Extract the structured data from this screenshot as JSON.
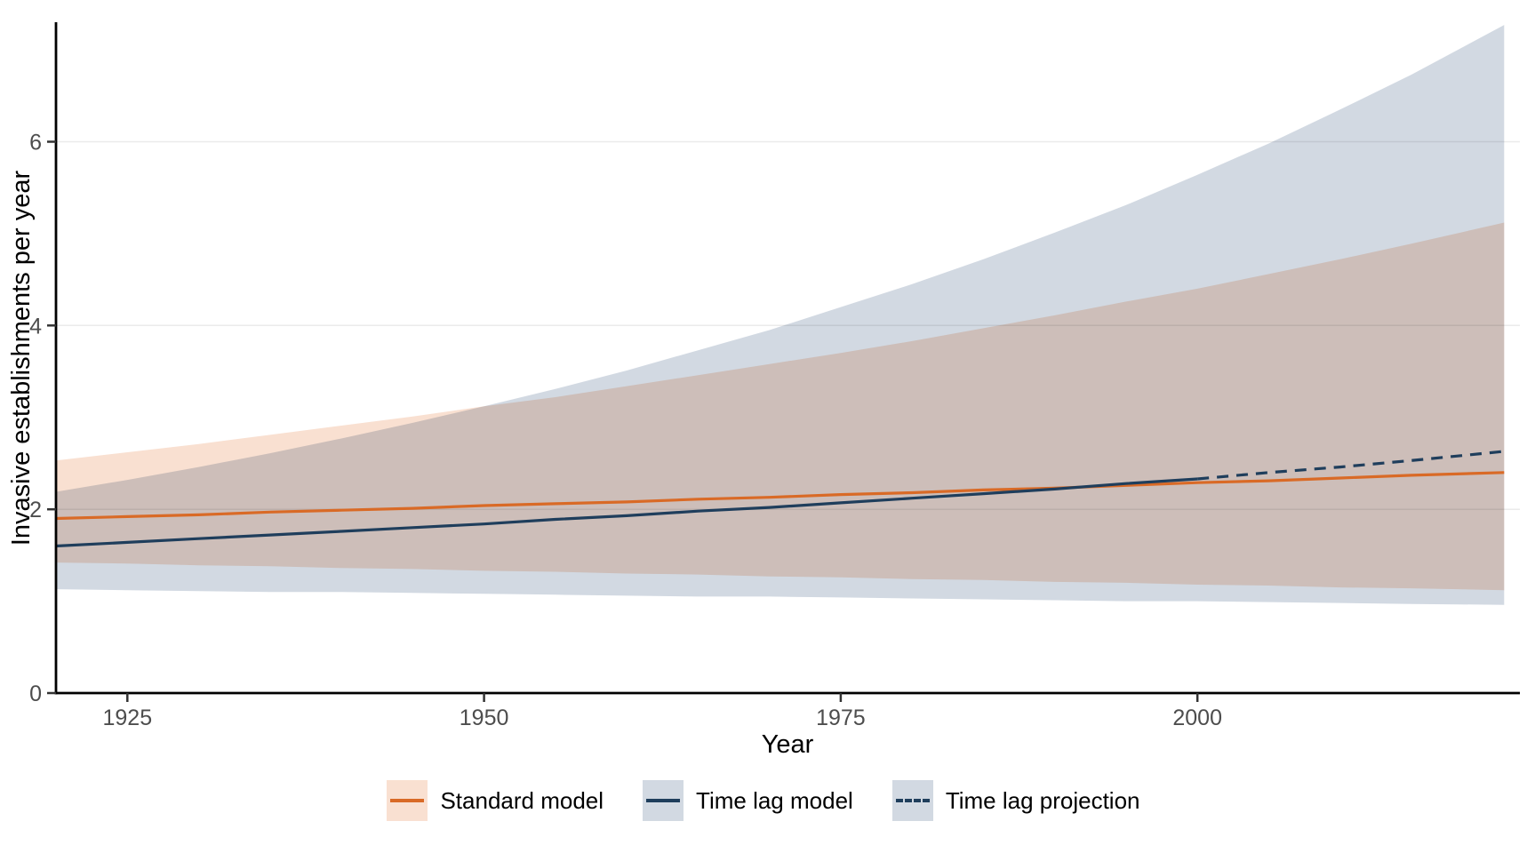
{
  "chart_data": {
    "type": "line",
    "title": "",
    "xlabel": "Year",
    "ylabel": "Invasive establishments per year",
    "x_domain": [
      1920,
      2022.6
    ],
    "y_domain": [
      0,
      7.3
    ],
    "x_ticks": [
      1925,
      1950,
      1975,
      2000
    ],
    "y_ticks": [
      0,
      2,
      4,
      6
    ],
    "grid": "horizontal-major-only",
    "grid_color": "#EBEBEB",
    "axis_line_color": "#000000",
    "tick_color": "#333333",
    "tick_label_color": "#4D4D4D",
    "background_color": "#FFFFFF",
    "legend_position": "bottom",
    "series": [
      {
        "name": "Standard model",
        "color": "#D96A26",
        "line_style": "solid",
        "x": [
          1920,
          1925,
          1930,
          1935,
          1940,
          1945,
          1950,
          1955,
          1960,
          1965,
          1970,
          1975,
          1980,
          1985,
          1990,
          1995,
          2000,
          2005,
          2010,
          2015,
          2021.5
        ],
        "y": [
          1.9,
          1.92,
          1.94,
          1.97,
          1.99,
          2.01,
          2.04,
          2.06,
          2.08,
          2.11,
          2.13,
          2.16,
          2.18,
          2.21,
          2.23,
          2.26,
          2.29,
          2.31,
          2.34,
          2.37,
          2.4
        ],
        "band_fill": "#F9E0D1",
        "band_x": [
          1920,
          1925,
          1930,
          1935,
          1940,
          1945,
          1950,
          1955,
          1960,
          1965,
          1970,
          1975,
          1980,
          1985,
          1990,
          1995,
          2000,
          2005,
          2010,
          2015,
          2021.5
        ],
        "band_upper": [
          2.53,
          2.62,
          2.71,
          2.81,
          2.91,
          3.01,
          3.12,
          3.22,
          3.34,
          3.46,
          3.58,
          3.7,
          3.83,
          3.97,
          4.11,
          4.26,
          4.4,
          4.56,
          4.72,
          4.89,
          5.12
        ],
        "band_lower": [
          1.42,
          1.41,
          1.39,
          1.38,
          1.36,
          1.35,
          1.33,
          1.32,
          1.3,
          1.29,
          1.27,
          1.26,
          1.24,
          1.23,
          1.21,
          1.2,
          1.18,
          1.17,
          1.15,
          1.14,
          1.12
        ]
      },
      {
        "name": "Time lag model",
        "color": "#1F3E5C",
        "line_style": "solid",
        "x": [
          1920,
          1925,
          1930,
          1935,
          1940,
          1945,
          1950,
          1955,
          1960,
          1965,
          1970,
          1975,
          1980,
          1985,
          1990,
          1995,
          2000
        ],
        "y": [
          1.6,
          1.64,
          1.68,
          1.72,
          1.76,
          1.8,
          1.84,
          1.89,
          1.93,
          1.98,
          2.02,
          2.07,
          2.12,
          2.17,
          2.22,
          2.28,
          2.33
        ],
        "band_fill": "#D2D9E2",
        "band_x": [
          1920,
          1925,
          1930,
          1935,
          1940,
          1945,
          1950,
          1955,
          1960,
          1965,
          1970,
          1975,
          1980,
          1985,
          1990,
          1995,
          2000,
          2005,
          2010,
          2015,
          2021.5
        ],
        "band_upper": [
          2.19,
          2.32,
          2.46,
          2.61,
          2.77,
          2.94,
          3.12,
          3.31,
          3.51,
          3.73,
          3.95,
          4.2,
          4.45,
          4.72,
          5.01,
          5.31,
          5.64,
          5.98,
          6.35,
          6.73,
          7.27
        ],
        "band_lower": [
          1.13,
          1.12,
          1.11,
          1.1,
          1.1,
          1.09,
          1.08,
          1.07,
          1.06,
          1.05,
          1.05,
          1.04,
          1.03,
          1.02,
          1.01,
          1.0,
          1.0,
          0.99,
          0.98,
          0.97,
          0.96
        ]
      },
      {
        "name": "Time lag projection",
        "color": "#1F3E5C",
        "line_style": "dashed",
        "x": [
          2000,
          2005,
          2010,
          2015,
          2021.5
        ],
        "y": [
          2.33,
          2.4,
          2.46,
          2.53,
          2.63
        ]
      }
    ],
    "legend": {
      "items": [
        {
          "label": "Standard model",
          "swatch_fill": "#F9E0D1",
          "line_color": "#D96A26",
          "line_style": "solid"
        },
        {
          "label": "Time lag model",
          "swatch_fill": "#D2D9E2",
          "line_color": "#1F3E5C",
          "line_style": "solid"
        },
        {
          "label": "Time lag projection",
          "swatch_fill": "#D2D9E2",
          "line_color": "#1F3E5C",
          "line_style": "dashed"
        }
      ]
    }
  }
}
